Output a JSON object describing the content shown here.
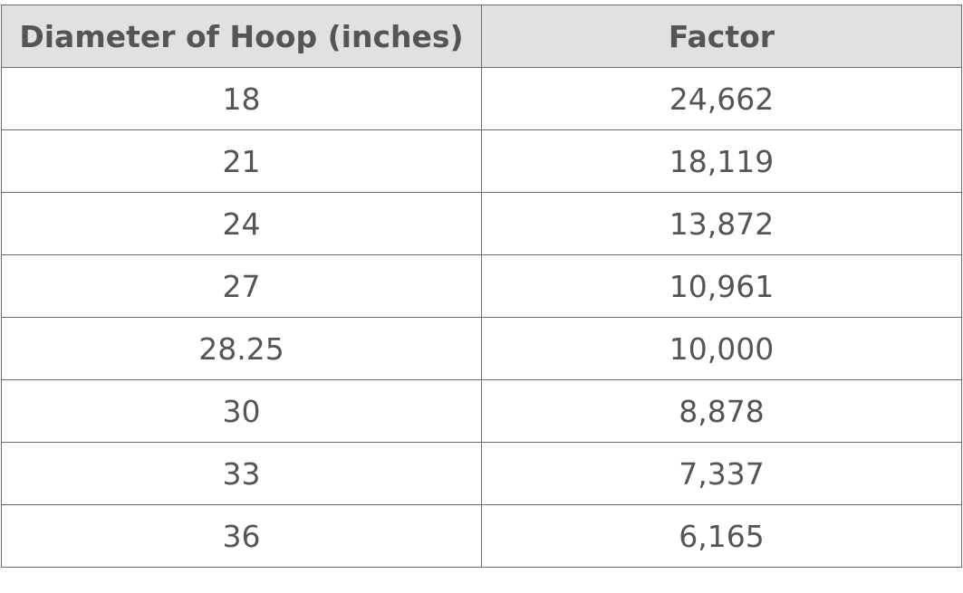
{
  "table": {
    "header": [
      "Diameter of Hoop (inches)",
      "Factor"
    ],
    "rows": [
      [
        "18",
        "24,662"
      ],
      [
        "21",
        "18,119"
      ],
      [
        "24",
        "13,872"
      ],
      [
        "27",
        "10,961"
      ],
      [
        "28.25",
        "10,000"
      ],
      [
        "30",
        "8,878"
      ],
      [
        "33",
        "7,337"
      ],
      [
        "36",
        "6,165"
      ]
    ]
  }
}
